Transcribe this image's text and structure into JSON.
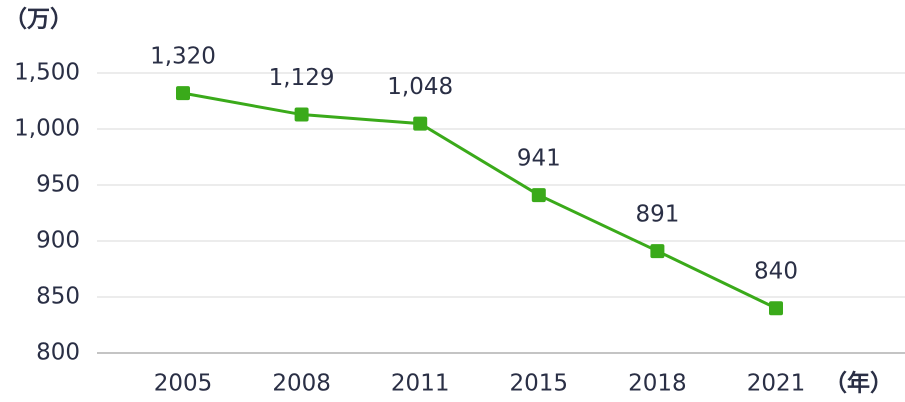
{
  "chart_data": {
    "type": "line",
    "y_unit": "（万）",
    "x_unit": "（年）",
    "categories": [
      "2005",
      "2008",
      "2011",
      "2015",
      "2018",
      "2021"
    ],
    "series": [
      {
        "color": "#3aaa1a",
        "values": [
          1320,
          1129,
          1048,
          941,
          891,
          840
        ],
        "value_labels": [
          "1,320",
          "1,129",
          "1,048",
          "941",
          "891",
          "840"
        ]
      }
    ],
    "ylim": [
      800,
      1500
    ],
    "yticks": [
      800,
      850,
      900,
      950,
      {
        "value": 1000,
        "label": "1,000"
      },
      {
        "value": 1500,
        "label": "1,500"
      }
    ],
    "grid": true
  }
}
